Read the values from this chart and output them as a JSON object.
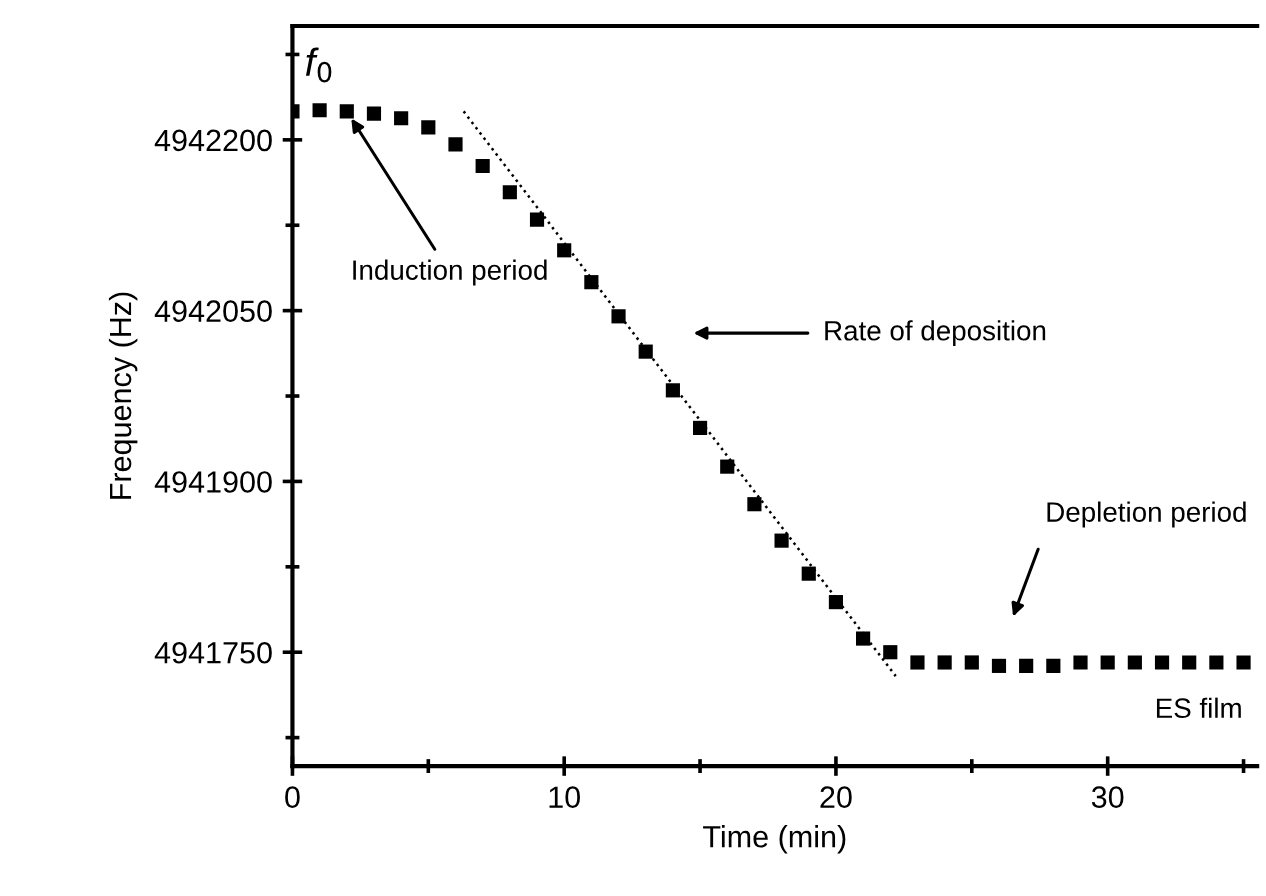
{
  "chart_data": {
    "type": "scatter",
    "xlabel": "Time (min)",
    "ylabel": "Frequency (Hz)",
    "x": [
      0,
      1,
      2,
      3,
      4,
      5,
      6,
      7,
      8,
      9,
      10,
      11,
      12,
      13,
      14,
      15,
      16,
      17,
      18,
      19,
      20,
      21,
      22,
      23,
      24,
      25,
      26,
      27,
      28,
      29,
      30,
      31,
      32,
      33,
      34,
      35
    ],
    "series": [
      {
        "color": "#000000",
        "marker": "square",
        "values": [
          4942225,
          4942226,
          4942225,
          4942223,
          4942219,
          4942211,
          4942196,
          4942177,
          4942154,
          4942130,
          4942103,
          4942075,
          4942045,
          4942014,
          4941980,
          4941947,
          4941913,
          4941880,
          4941848,
          4941819,
          4941794,
          4941762,
          4941750,
          4941741,
          4941741,
          4941741,
          4941738,
          4941738,
          4941738,
          4941741,
          4941741,
          4941741,
          4941741,
          4941741,
          4941741,
          4941741
        ]
      },
      {
        "type": "line",
        "color": "#000000",
        "line_style": "dotted",
        "x": [
          6.3,
          22.2
        ],
        "values": [
          4942225,
          4941729
        ]
      }
    ],
    "xlim": [
      0,
      35.5
    ],
    "xticks": [
      0,
      10,
      20,
      30
    ],
    "ylim": [
      4941650,
      4942300
    ],
    "yticks": [
      4941750,
      4941900,
      4942050,
      4942200
    ],
    "grid": false,
    "legend": false,
    "annotations": [
      {
        "text": "f$_{0}$",
        "x": 1,
        "y": 4942226
      },
      {
        "text": "Induction period",
        "x": 2,
        "y": 4942225
      },
      "Rate of deposition",
      "Depletion period",
      "ES film"
    ]
  }
}
